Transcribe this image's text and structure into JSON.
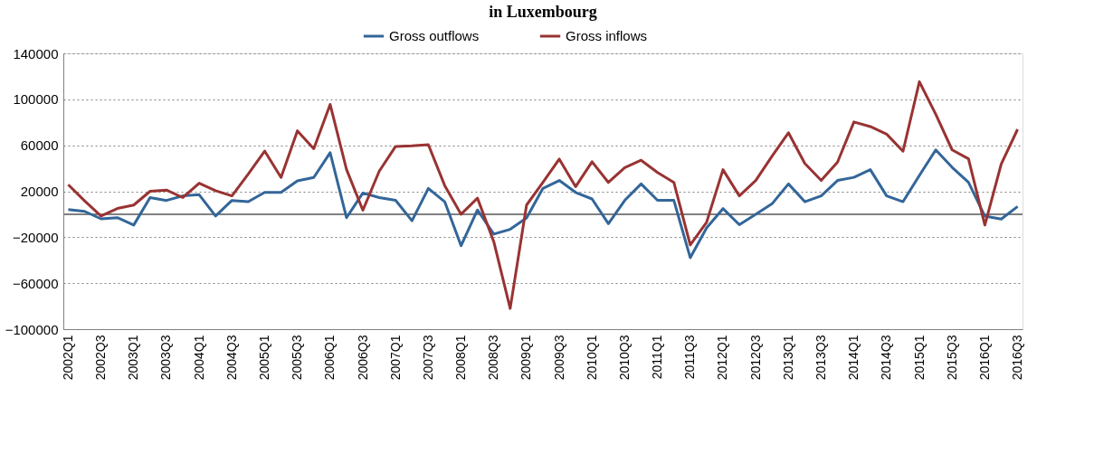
{
  "chart_data": {
    "type": "line",
    "title": "in Luxembourg",
    "categories": [
      "2002Q1",
      null,
      "2002Q3",
      null,
      "2003Q1",
      null,
      "2003Q3",
      null,
      "2004Q1",
      null,
      "2004Q3",
      null,
      "2005Q1",
      null,
      "2005Q3",
      null,
      "2006Q1",
      null,
      "2006Q3",
      null,
      "2007Q1",
      null,
      "2007Q3",
      null,
      "2008Q1",
      null,
      "2008Q3",
      null,
      "2009Q1",
      null,
      "2009Q3",
      null,
      "2010Q1",
      null,
      "2010Q3",
      null,
      "2011Q1",
      null,
      "2011Q3",
      null,
      "2012Q1",
      null,
      "2012Q3",
      null,
      "2013Q1",
      null,
      "2013Q3",
      null,
      "2014Q1",
      null,
      "2014Q3",
      null,
      "2015Q1",
      null,
      "2015Q3",
      null,
      "2016Q1",
      null,
      "2016Q3"
    ],
    "series": [
      {
        "name": "Gross outflows",
        "color": "#336699",
        "values": [
          4000,
          2500,
          -4000,
          -3000,
          -9400,
          14500,
          12000,
          16000,
          17000,
          -1500,
          12000,
          11000,
          19000,
          19000,
          29000,
          32000,
          53600,
          -3000,
          18500,
          14500,
          12100,
          -5700,
          22500,
          10900,
          -27400,
          3700,
          -17300,
          -13100,
          -3200,
          22500,
          29400,
          19000,
          13300,
          -8200,
          12100,
          26400,
          12100,
          12100,
          -37800,
          -11900,
          4900,
          -9100,
          0,
          9100,
          26400,
          10900,
          16000,
          29400,
          32100,
          38800,
          16000,
          10900,
          33800,
          56000,
          40800,
          27700,
          -1700,
          -4200,
          6700
        ]
      },
      {
        "name": "Gross inflows",
        "color": "#993333",
        "values": [
          25700,
          11600,
          -1500,
          5000,
          8000,
          20000,
          21000,
          14500,
          27000,
          20500,
          16000,
          35000,
          55000,
          32000,
          72600,
          57000,
          95600,
          39000,
          3500,
          37500,
          59000,
          59500,
          60500,
          25000,
          0,
          14000,
          -24000,
          -82000,
          8000,
          27700,
          48000,
          24000,
          45700,
          27700,
          40500,
          47000,
          36300,
          27700,
          -26700,
          -7000,
          38800,
          16000,
          29400,
          50600,
          70900,
          44200,
          29400,
          45400,
          80300,
          76300,
          69700,
          54800,
          115300,
          87000,
          56000,
          48200,
          -9400,
          43700,
          73900
        ]
      }
    ],
    "ylim": [
      -100000,
      140000
    ],
    "yticks": [
      -100000,
      -60000,
      -20000,
      20000,
      60000,
      100000,
      140000
    ],
    "ref_lines": [
      {
        "axis": "y",
        "value": 0,
        "color": "#808080"
      }
    ],
    "grid": "y",
    "legend": "top",
    "marker": "none",
    "line_style": "solid"
  }
}
